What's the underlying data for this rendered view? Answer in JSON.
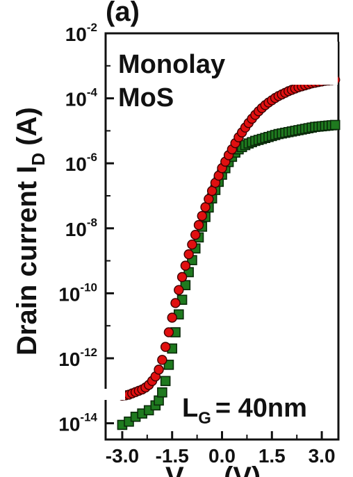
{
  "panel_label": "(a)",
  "chart_data": {
    "type": "scatter",
    "x_tick_labels": [
      "-3.0",
      "-1.5",
      "0.0",
      "1.5",
      "3.0"
    ],
    "x_ticks": [
      -3.0,
      -1.5,
      0.0,
      1.5,
      3.0
    ],
    "y_tick_labels": [
      {
        "base": "10",
        "exp": "-2"
      },
      {
        "base": "10",
        "exp": "-4"
      },
      {
        "base": "10",
        "exp": "-6"
      },
      {
        "base": "10",
        "exp": "-8"
      },
      {
        "base": "10",
        "exp": "-10"
      },
      {
        "base": "10",
        "exp": "-12"
      },
      {
        "base": "10",
        "exp": "-14"
      }
    ],
    "y_ticks_log10": [
      -2,
      -4,
      -6,
      -8,
      -10,
      -12,
      -14
    ],
    "xlim": [
      -3.5,
      3.5
    ],
    "ylim_log10": [
      -14.5,
      -2
    ],
    "y_scale": "log",
    "xlabel_main": "V",
    "xlabel_close": "(V)",
    "ylabel_main": "Drain current I",
    "ylabel_sub": "D",
    "ylabel_unit": "(A)",
    "annotations": {
      "material_line1": "Monolay",
      "material_line2": "MoS",
      "gate_length_main": "L",
      "gate_length_sub": "G",
      "gate_length_value": "= 40nm"
    },
    "series": [
      {
        "marker": "circle",
        "color": "#e01010",
        "edge_color": "#3a0000",
        "x": [
          -3.0,
          -2.9,
          -2.8,
          -2.7,
          -2.6,
          -2.5,
          -2.4,
          -2.3,
          -2.2,
          -2.1,
          -2.0,
          -1.9,
          -1.8,
          -1.7,
          -1.6,
          -1.5,
          -1.4,
          -1.3,
          -1.2,
          -1.1,
          -1.0,
          -0.9,
          -0.8,
          -0.7,
          -0.6,
          -0.5,
          -0.4,
          -0.3,
          -0.2,
          -0.1,
          0.0,
          0.1,
          0.2,
          0.3,
          0.4,
          0.5,
          0.6,
          0.7,
          0.8,
          0.9,
          1.0,
          1.1,
          1.2,
          1.3,
          1.4,
          1.5,
          1.6,
          1.7,
          1.8,
          1.9,
          2.0,
          2.1,
          2.2,
          2.3,
          2.4,
          2.5,
          2.6,
          2.7,
          2.8,
          2.9,
          3.0,
          3.1,
          3.2,
          3.3,
          3.4
        ],
        "log10_y": [
          -13.15,
          -13.14,
          -13.12,
          -13.08,
          -13.04,
          -13.0,
          -12.96,
          -12.9,
          -12.82,
          -12.7,
          -12.56,
          -12.35,
          -12.05,
          -11.65,
          -11.2,
          -10.75,
          -10.3,
          -9.9,
          -9.5,
          -9.15,
          -8.8,
          -8.5,
          -8.2,
          -7.9,
          -7.62,
          -7.35,
          -7.1,
          -6.85,
          -6.6,
          -6.38,
          -6.15,
          -5.95,
          -5.75,
          -5.57,
          -5.38,
          -5.2,
          -5.05,
          -4.9,
          -4.76,
          -4.63,
          -4.51,
          -4.4,
          -4.3,
          -4.21,
          -4.13,
          -4.06,
          -3.99,
          -3.93,
          -3.88,
          -3.83,
          -3.78,
          -3.74,
          -3.7,
          -3.66,
          -3.63,
          -3.6,
          -3.57,
          -3.54,
          -3.52,
          -3.5,
          -3.48,
          -3.46,
          -3.45,
          -3.44,
          -3.43
        ]
      },
      {
        "marker": "square",
        "color": "#1f7a1f",
        "edge_color": "#0a2a0a",
        "x": [
          -3.0,
          -2.8,
          -2.6,
          -2.4,
          -2.2,
          -2.0,
          -1.9,
          -1.8,
          -1.7,
          -1.6,
          -1.5,
          -1.4,
          -1.3,
          -1.2,
          -1.1,
          -1.0,
          -0.9,
          -0.8,
          -0.7,
          -0.6,
          -0.5,
          -0.4,
          -0.3,
          -0.2,
          -0.1,
          0.0,
          0.1,
          0.2,
          0.3,
          0.4,
          0.5,
          0.6,
          0.7,
          0.8,
          0.9,
          1.0,
          1.1,
          1.2,
          1.3,
          1.4,
          1.5,
          1.6,
          1.7,
          1.8,
          1.9,
          2.0,
          2.1,
          2.2,
          2.3,
          2.4,
          2.5,
          2.6,
          2.7,
          2.8,
          2.9,
          3.0,
          3.1,
          3.2,
          3.3,
          3.4
        ],
        "log10_y": [
          -14.05,
          -13.95,
          -13.8,
          -13.7,
          -13.6,
          -13.45,
          -13.3,
          -13.05,
          -12.7,
          -12.2,
          -11.7,
          -11.2,
          -10.65,
          -10.2,
          -9.75,
          -9.35,
          -8.98,
          -8.62,
          -8.28,
          -7.95,
          -7.65,
          -7.36,
          -7.08,
          -6.82,
          -6.57,
          -6.35,
          -6.15,
          -5.96,
          -5.8,
          -5.67,
          -5.57,
          -5.5,
          -5.44,
          -5.39,
          -5.35,
          -5.31,
          -5.28,
          -5.25,
          -5.22,
          -5.19,
          -5.16,
          -5.13,
          -5.1,
          -5.08,
          -5.06,
          -5.04,
          -5.02,
          -5.0,
          -4.98,
          -4.96,
          -4.94,
          -4.92,
          -4.9,
          -4.88,
          -4.87,
          -4.86,
          -4.85,
          -4.84,
          -4.83,
          -4.82
        ]
      }
    ]
  }
}
